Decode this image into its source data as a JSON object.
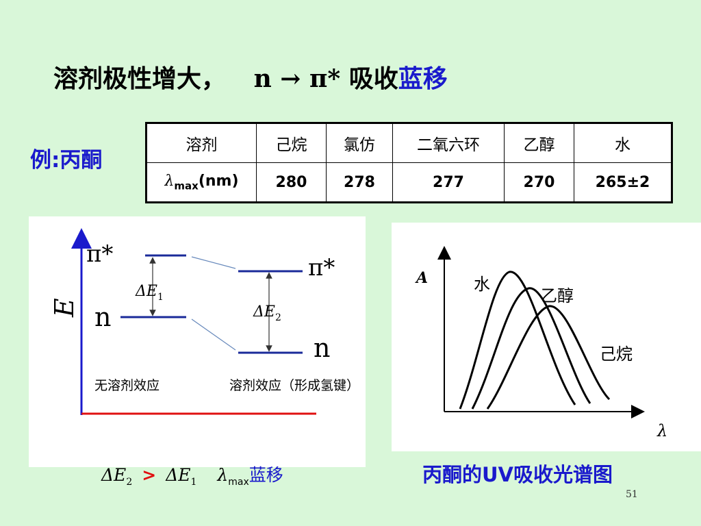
{
  "title": {
    "prefix": "溶剂极性增大，",
    "transition": "n → π*",
    "mid": " 吸收",
    "emph": "蓝移"
  },
  "example": {
    "label": "例:丙酮"
  },
  "table": {
    "header": [
      "溶剂",
      "己烷",
      "氯仿",
      "二氧六环",
      "乙醇",
      "水"
    ],
    "row_label_sym": "λ",
    "row_label_sub": "max",
    "row_label_unit": "(nm)",
    "values": [
      "280",
      "278",
      "277",
      "270",
      "265±2"
    ]
  },
  "energy_diagram": {
    "axis_label": "E",
    "pi_star_left": "π*",
    "pi_star_right": "π*",
    "n_left": "n",
    "n_right": "n",
    "delta_e1": "ΔE",
    "delta_e1_sub": "1",
    "delta_e2": "ΔE",
    "delta_e2_sub": "2",
    "caption_left": "无溶剂效应",
    "caption_right": "溶剂效应（形成氢键）"
  },
  "spectrum": {
    "y_label": "A",
    "x_label": "λ",
    "curves": [
      "水",
      "乙醇",
      "己烷"
    ]
  },
  "bottom": {
    "e2": "ΔE",
    "e2_sub": "2",
    "gt": ">",
    "e1": "ΔE",
    "e1_sub": "1",
    "lambda": "λ",
    "lambda_sub": "max",
    "shift": "蓝移"
  },
  "caption": "丙酮的UV吸收光谱图",
  "page_number": "51",
  "colors": {
    "blue_text": "#1a1acc",
    "level_line": "#1a2a99",
    "axis_red": "#e01010",
    "background": "#d9f7d9"
  }
}
